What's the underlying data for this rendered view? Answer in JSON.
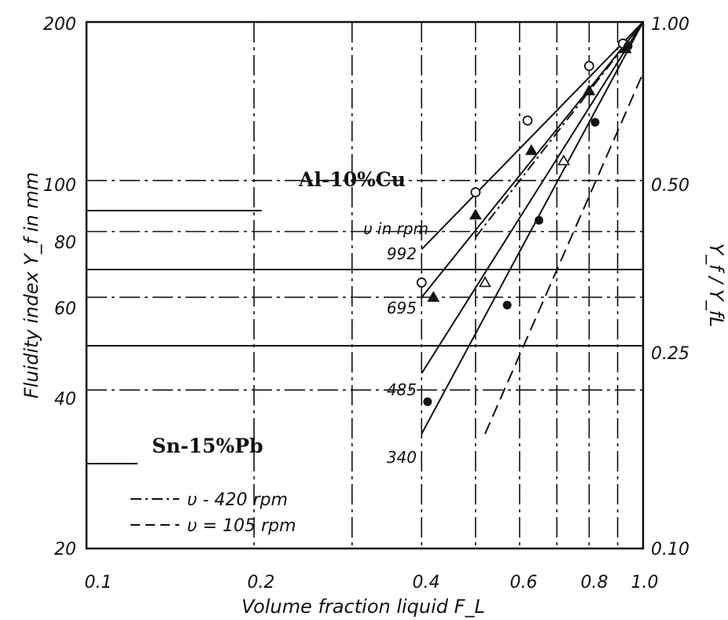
{
  "chart_data": {
    "type": "scatter",
    "xlabel": "Volume fraction liquid F_L",
    "ylabel": "Fluidity index Y_f in mm",
    "y2label": "Y_f / Y_fL",
    "x_scale": "log",
    "y_scale": "log",
    "xlim": [
      0.1,
      1.0
    ],
    "ylim": [
      20,
      200
    ],
    "y2lim": [
      0.1,
      1.0
    ],
    "x_ticks": [
      "0.1",
      "0.2",
      "0.4",
      "0.6",
      "0.8",
      "1.0"
    ],
    "y_ticks": [
      "20",
      "40",
      "60",
      "80",
      "100",
      "200"
    ],
    "y2_ticks": [
      "0.10",
      "0.25",
      "0.50",
      "1.00"
    ],
    "grid": true,
    "annotations": {
      "alloy_top": "Al-10%Cu",
      "alloy_bottom": "Sn-15%Pb",
      "speed_header": "υ in rpm"
    },
    "legend": {
      "placement": "bottom-left",
      "entries": [
        "υ - 420 rpm",
        "υ = 105 rpm"
      ]
    },
    "series": [
      {
        "name": "992",
        "line": [
          [
            0.4,
            74
          ],
          [
            1.0,
            200
          ]
        ],
        "points": [
          [
            0.4,
            64
          ],
          [
            0.5,
            95
          ],
          [
            0.62,
            130
          ],
          [
            0.8,
            165
          ],
          [
            0.92,
            182
          ]
        ]
      },
      {
        "name": "695",
        "line": [
          [
            0.4,
            60
          ],
          [
            1.0,
            200
          ]
        ],
        "points": [
          [
            0.42,
            60
          ],
          [
            0.5,
            86
          ],
          [
            0.63,
            114
          ],
          [
            0.8,
            148
          ],
          [
            0.93,
            178
          ]
        ]
      },
      {
        "name": "485",
        "line": [
          [
            0.4,
            43
          ],
          [
            1.0,
            200
          ]
        ],
        "points": [
          [
            0.52,
            64
          ],
          [
            0.72,
            109
          ]
        ]
      },
      {
        "name": "340",
        "line": [
          [
            0.4,
            33
          ],
          [
            1.0,
            200
          ]
        ],
        "points": [
          [
            0.41,
            38
          ],
          [
            0.57,
            58
          ],
          [
            0.65,
            84
          ],
          [
            0.82,
            129
          ],
          [
            0.94,
            180
          ]
        ]
      }
    ],
    "sn_pb_lines": [
      {
        "name": "υ - 420 rpm",
        "line": [
          [
            0.5,
            78
          ],
          [
            1.0,
            200
          ]
        ]
      },
      {
        "name": "υ = 105 rpm",
        "line": [
          [
            0.52,
            33
          ],
          [
            1.0,
            160
          ]
        ]
      }
    ]
  }
}
